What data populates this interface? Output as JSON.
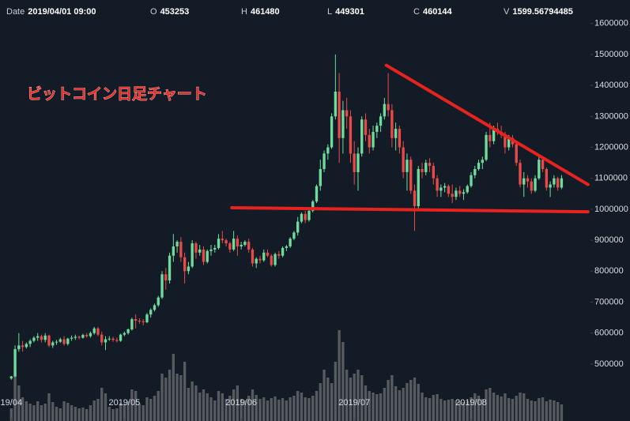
{
  "chart_data": {
    "type": "candlestick",
    "annotation": "ビットコイン日足チャート",
    "ohlc_legend": [
      {
        "label": "Date",
        "value": "2019/04/01 09:00"
      },
      {
        "label": "O",
        "value": 453253
      },
      {
        "label": "H",
        "value": 461480
      },
      {
        "label": "L",
        "value": 449301
      },
      {
        "label": "C",
        "value": 460144
      },
      {
        "label": "V",
        "value": 1599.56794485
      }
    ],
    "up_color": "#6fdc9c",
    "down_color": "#e84a4a",
    "volume_color": "#575b60",
    "xlim": [
      -3,
      153.25
    ],
    "xticks": [
      {
        "value": 0,
        "label": "19/04"
      },
      {
        "value": 30,
        "label": "2019/05"
      },
      {
        "value": 61,
        "label": "2019/06"
      },
      {
        "value": 91,
        "label": "2019/07"
      },
      {
        "value": 122,
        "label": "2019/08"
      }
    ],
    "ylim": [
      316000,
      1676000
    ],
    "yticks": [
      500000,
      600000,
      700000,
      800000,
      900000,
      1000000,
      1100000,
      1200000,
      1300000,
      1400000,
      1500000,
      1600000
    ],
    "vlim": [
      0,
      14000
    ],
    "trendlines": [
      {
        "color": "#e8231f",
        "x": [
          99.5,
          153
        ],
        "y": [
          1465000,
          1080000
        ]
      },
      {
        "color": "#e8231f",
        "x": [
          58.5,
          153
        ],
        "y": [
          1005000,
          992000
        ]
      }
    ],
    "candles": [
      [
        453253,
        461480,
        449301,
        460144
      ],
      [
        460000,
        560000,
        458000,
        548000
      ],
      [
        548000,
        600000,
        540000,
        560000
      ],
      [
        560000,
        575000,
        540000,
        555000
      ],
      [
        555000,
        570000,
        550000,
        565000
      ],
      [
        565000,
        580000,
        555000,
        575000
      ],
      [
        575000,
        590000,
        570000,
        585000
      ],
      [
        585000,
        600000,
        575000,
        590000
      ],
      [
        590000,
        595000,
        570000,
        578000
      ],
      [
        578000,
        600000,
        570000,
        592000
      ],
      [
        592000,
        595000,
        555000,
        560000
      ],
      [
        560000,
        575000,
        552000,
        570000
      ],
      [
        570000,
        578000,
        562000,
        572000
      ],
      [
        572000,
        585000,
        568000,
        580000
      ],
      [
        580000,
        590000,
        560000,
        565000
      ],
      [
        565000,
        585000,
        560000,
        582000
      ],
      [
        582000,
        592000,
        575000,
        585000
      ],
      [
        585000,
        595000,
        578000,
        588000
      ],
      [
        588000,
        592000,
        580000,
        585000
      ],
      [
        585000,
        598000,
        582000,
        594000
      ],
      [
        594000,
        600000,
        585000,
        590000
      ],
      [
        590000,
        605000,
        585000,
        600000
      ],
      [
        600000,
        620000,
        595000,
        615000
      ],
      [
        615000,
        620000,
        590000,
        595000
      ],
      [
        595000,
        605000,
        560000,
        570000
      ],
      [
        570000,
        590000,
        545000,
        580000
      ],
      [
        580000,
        590000,
        575000,
        582000
      ],
      [
        582000,
        588000,
        572000,
        578000
      ],
      [
        578000,
        585000,
        570000,
        575000
      ],
      [
        575000,
        598000,
        572000,
        595000
      ],
      [
        595000,
        605000,
        590000,
        600000
      ],
      [
        600000,
        615000,
        595000,
        612000
      ],
      [
        612000,
        650000,
        608000,
        645000
      ],
      [
        645000,
        660000,
        615000,
        640000
      ],
      [
        640000,
        648000,
        630000,
        638000
      ],
      [
        638000,
        645000,
        625000,
        635000
      ],
      [
        635000,
        665000,
        632000,
        660000
      ],
      [
        660000,
        680000,
        650000,
        675000
      ],
      [
        675000,
        695000,
        670000,
        690000
      ],
      [
        690000,
        720000,
        685000,
        715000
      ],
      [
        715000,
        800000,
        710000,
        790000
      ],
      [
        790000,
        810000,
        740000,
        770000
      ],
      [
        770000,
        860000,
        760000,
        850000
      ],
      [
        850000,
        920000,
        830000,
        880000
      ],
      [
        880000,
        900000,
        860000,
        895000
      ],
      [
        895000,
        910000,
        830000,
        845000
      ],
      [
        845000,
        860000,
        760000,
        800000
      ],
      [
        800000,
        830000,
        790000,
        815000
      ],
      [
        815000,
        900000,
        810000,
        890000
      ],
      [
        890000,
        895000,
        840000,
        860000
      ],
      [
        860000,
        885000,
        850000,
        870000
      ],
      [
        870000,
        880000,
        820000,
        830000
      ],
      [
        830000,
        870000,
        825000,
        865000
      ],
      [
        865000,
        885000,
        850000,
        870000
      ],
      [
        870000,
        885000,
        860000,
        875000
      ],
      [
        875000,
        920000,
        870000,
        905000
      ],
      [
        905000,
        930000,
        890000,
        900000
      ],
      [
        900000,
        905000,
        880000,
        890000
      ],
      [
        890000,
        895000,
        860000,
        870000
      ],
      [
        870000,
        930000,
        865000,
        905000
      ],
      [
        905000,
        915000,
        850000,
        880000
      ],
      [
        880000,
        895000,
        870000,
        885000
      ],
      [
        885000,
        900000,
        880000,
        895000
      ],
      [
        895000,
        905000,
        860000,
        870000
      ],
      [
        870000,
        875000,
        815000,
        825000
      ],
      [
        825000,
        845000,
        810000,
        840000
      ],
      [
        840000,
        850000,
        825000,
        835000
      ],
      [
        835000,
        870000,
        830000,
        860000
      ],
      [
        860000,
        870000,
        845000,
        850000
      ],
      [
        850000,
        855000,
        815000,
        820000
      ],
      [
        820000,
        860000,
        815000,
        855000
      ],
      [
        855000,
        865000,
        840000,
        850000
      ],
      [
        850000,
        880000,
        845000,
        875000
      ],
      [
        875000,
        885000,
        865000,
        880000
      ],
      [
        880000,
        910000,
        875000,
        905000
      ],
      [
        905000,
        930000,
        900000,
        925000
      ],
      [
        925000,
        975000,
        915000,
        960000
      ],
      [
        960000,
        990000,
        955000,
        985000
      ],
      [
        985000,
        995000,
        955000,
        965000
      ],
      [
        965000,
        1000000,
        960000,
        995000
      ],
      [
        995000,
        1030000,
        990000,
        1025000
      ],
      [
        1025000,
        1080000,
        1020000,
        1075000
      ],
      [
        1075000,
        1160000,
        1060000,
        1130000
      ],
      [
        1130000,
        1190000,
        1120000,
        1180000
      ],
      [
        1180000,
        1210000,
        1160000,
        1200000
      ],
      [
        1200000,
        1310000,
        1195000,
        1300000
      ],
      [
        1300000,
        1500000,
        1290000,
        1380000
      ],
      [
        1380000,
        1440000,
        1150000,
        1230000
      ],
      [
        1230000,
        1350000,
        1180000,
        1320000
      ],
      [
        1320000,
        1360000,
        1260000,
        1300000
      ],
      [
        1300000,
        1320000,
        1150000,
        1180000
      ],
      [
        1180000,
        1220000,
        1080000,
        1120000
      ],
      [
        1120000,
        1200000,
        1060000,
        1180000
      ],
      [
        1180000,
        1300000,
        1170000,
        1290000
      ],
      [
        1290000,
        1310000,
        1220000,
        1240000
      ],
      [
        1240000,
        1260000,
        1180000,
        1200000
      ],
      [
        1200000,
        1270000,
        1190000,
        1250000
      ],
      [
        1250000,
        1280000,
        1230000,
        1270000
      ],
      [
        1270000,
        1310000,
        1250000,
        1300000
      ],
      [
        1300000,
        1360000,
        1290000,
        1340000
      ],
      [
        1340000,
        1440000,
        1300000,
        1320000
      ],
      [
        1320000,
        1340000,
        1200000,
        1230000
      ],
      [
        1230000,
        1280000,
        1190000,
        1260000
      ],
      [
        1260000,
        1270000,
        1180000,
        1200000
      ],
      [
        1200000,
        1220000,
        1100000,
        1120000
      ],
      [
        1120000,
        1180000,
        1060000,
        1160000
      ],
      [
        1160000,
        1170000,
        1050000,
        1060000
      ],
      [
        1060000,
        1080000,
        930000,
        1010000
      ],
      [
        1010000,
        1140000,
        1000000,
        1130000
      ],
      [
        1130000,
        1150000,
        1100000,
        1120000
      ],
      [
        1120000,
        1160000,
        1110000,
        1150000
      ],
      [
        1150000,
        1165000,
        1120000,
        1140000
      ],
      [
        1140000,
        1150000,
        1080000,
        1100000
      ],
      [
        1100000,
        1110000,
        1040000,
        1060000
      ],
      [
        1060000,
        1080000,
        1040000,
        1070000
      ],
      [
        1070000,
        1085000,
        1055000,
        1075000
      ],
      [
        1075000,
        1080000,
        1040000,
        1050000
      ],
      [
        1050000,
        1080000,
        1020000,
        1040000
      ],
      [
        1040000,
        1070000,
        1030000,
        1060000
      ],
      [
        1060000,
        1075000,
        1040000,
        1050000
      ],
      [
        1050000,
        1065000,
        1030000,
        1055000
      ],
      [
        1055000,
        1080000,
        1050000,
        1075000
      ],
      [
        1075000,
        1120000,
        1070000,
        1110000
      ],
      [
        1110000,
        1140000,
        1100000,
        1130000
      ],
      [
        1130000,
        1160000,
        1125000,
        1150000
      ],
      [
        1150000,
        1170000,
        1130000,
        1160000
      ],
      [
        1160000,
        1250000,
        1155000,
        1240000
      ],
      [
        1240000,
        1280000,
        1200000,
        1220000
      ],
      [
        1220000,
        1270000,
        1210000,
        1260000
      ],
      [
        1260000,
        1280000,
        1240000,
        1250000
      ],
      [
        1250000,
        1270000,
        1230000,
        1240000
      ],
      [
        1240000,
        1250000,
        1180000,
        1200000
      ],
      [
        1200000,
        1240000,
        1190000,
        1230000
      ],
      [
        1230000,
        1240000,
        1200000,
        1210000
      ],
      [
        1210000,
        1220000,
        1140000,
        1150000
      ],
      [
        1150000,
        1160000,
        1070000,
        1080000
      ],
      [
        1080000,
        1120000,
        1040000,
        1100000
      ],
      [
        1100000,
        1110000,
        1070000,
        1090000
      ],
      [
        1090000,
        1100000,
        1050000,
        1060000
      ],
      [
        1060000,
        1110000,
        1055000,
        1100000
      ],
      [
        1100000,
        1170000,
        1095000,
        1160000
      ],
      [
        1160000,
        1165000,
        1120000,
        1130000
      ],
      [
        1130000,
        1135000,
        1060000,
        1070000
      ],
      [
        1070000,
        1090000,
        1040000,
        1080000
      ],
      [
        1080000,
        1110000,
        1070000,
        1100000
      ],
      [
        1100000,
        1105000,
        1060000,
        1070000
      ],
      [
        1070000,
        1110000,
        1065000,
        1100000
      ]
    ],
    "volume": [
      1599.56794485,
      6000,
      4500,
      3000,
      2500,
      2200,
      2000,
      2500,
      2000,
      2200,
      3500,
      2400,
      1800,
      1600,
      2500,
      2300,
      2000,
      1800,
      1600,
      1700,
      1500,
      2000,
      2600,
      2800,
      4200,
      3500,
      1800,
      1500,
      1600,
      2300,
      2200,
      2500,
      4000,
      3800,
      2200,
      2000,
      3000,
      2800,
      3200,
      3800,
      6000,
      5500,
      6500,
      8500,
      6000,
      5800,
      7500,
      4200,
      5000,
      4500,
      3600,
      4000,
      3500,
      3000,
      2600,
      3800,
      3500,
      2800,
      3200,
      4000,
      4500,
      2800,
      2600,
      3200,
      4000,
      3300,
      2800,
      3000,
      2600,
      2900,
      3100,
      2700,
      2900,
      2600,
      3000,
      3200,
      3800,
      3600,
      3000,
      2900,
      3200,
      3800,
      4800,
      6500,
      5500,
      4800,
      7500,
      11500,
      10000,
      6500,
      5500,
      6000,
      6500,
      5800,
      4500,
      3800,
      3600,
      3400,
      3500,
      4200,
      5200,
      5800,
      4400,
      3900,
      4200,
      4800,
      5200,
      5500,
      4700,
      3600,
      3000,
      2900,
      3300,
      3400,
      2800,
      2600,
      2700,
      2800,
      2600,
      2500,
      2400,
      2500,
      3000,
      3500,
      3200,
      2800,
      4000,
      4200,
      3600,
      3300,
      3100,
      3500,
      2900,
      2800,
      3200,
      3600,
      3500,
      2800,
      2600,
      2500,
      2900,
      3000,
      2500,
      2700,
      2600,
      2400,
      2100
    ]
  }
}
